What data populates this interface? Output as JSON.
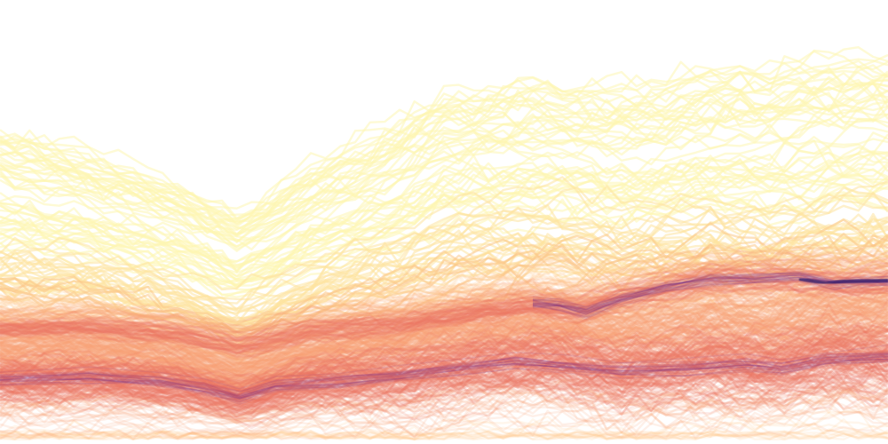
{
  "chart_data": {
    "type": "line",
    "render_style": "density",
    "colormap": [
      "#fdf6b3",
      "#fde3a0",
      "#fcc98a",
      "#f9a377",
      "#ef7565",
      "#d94f64",
      "#a8367a",
      "#6a2b8a",
      "#2b1a6b"
    ],
    "background": "#ffffff",
    "grid": false,
    "axes_visible": false,
    "legend": "none",
    "x_range": [
      0,
      100
    ],
    "y_range": [
      0,
      100
    ],
    "series_count_estimate": 600,
    "bands": [
      {
        "name": "main",
        "center": [
          [
            0,
            14
          ],
          [
            10,
            14.5
          ],
          [
            20,
            13
          ],
          [
            27,
            10
          ],
          [
            35,
            13.5
          ],
          [
            45,
            15
          ],
          [
            55,
            18
          ],
          [
            62,
            18.5
          ],
          [
            70,
            16
          ],
          [
            80,
            18
          ],
          [
            87,
            17
          ],
          [
            93,
            19
          ],
          [
            100,
            19
          ]
        ],
        "spread": [
          [
            0,
            22
          ],
          [
            27,
            16
          ],
          [
            50,
            24
          ],
          [
            100,
            26
          ]
        ]
      },
      {
        "name": "upper",
        "center": [
          [
            60,
            31
          ],
          [
            65,
            30
          ],
          [
            70,
            33
          ],
          [
            80,
            37
          ],
          [
            88,
            37.5
          ],
          [
            95,
            36
          ],
          [
            100,
            36.5
          ]
        ],
        "spread": [
          [
            60,
            9
          ],
          [
            80,
            11
          ],
          [
            100,
            12
          ]
        ]
      }
    ],
    "upper_envelope": [
      [
        0,
        95
      ],
      [
        3,
        88
      ],
      [
        6,
        85
      ],
      [
        10,
        92
      ],
      [
        12,
        99
      ],
      [
        16,
        97
      ],
      [
        19,
        93
      ],
      [
        21,
        90
      ],
      [
        24,
        72
      ],
      [
        27,
        62
      ],
      [
        30,
        72
      ],
      [
        32,
        88
      ],
      [
        35,
        82
      ],
      [
        38,
        74
      ],
      [
        42,
        92
      ],
      [
        45,
        86
      ],
      [
        48,
        92
      ],
      [
        52,
        88
      ],
      [
        56,
        97
      ],
      [
        60,
        84
      ],
      [
        64,
        80
      ],
      [
        67,
        86
      ],
      [
        69,
        95
      ],
      [
        72,
        93
      ],
      [
        75,
        99
      ],
      [
        79,
        92
      ],
      [
        82,
        99
      ],
      [
        85,
        88
      ],
      [
        88,
        99
      ],
      [
        92,
        96
      ],
      [
        96,
        99
      ],
      [
        100,
        97
      ]
    ],
    "dense_ridges": [
      {
        "points": [
          [
            0,
            14.5
          ],
          [
            10,
            15
          ],
          [
            18,
            14
          ],
          [
            23,
            12.5
          ],
          [
            27,
            10.5
          ],
          [
            31,
            13
          ],
          [
            38,
            14
          ],
          [
            45,
            15.5
          ],
          [
            52,
            17
          ],
          [
            58,
            18.5
          ],
          [
            64,
            17.5
          ],
          [
            70,
            16.5
          ],
          [
            77,
            17
          ],
          [
            84,
            18
          ],
          [
            88,
            17
          ],
          [
            93,
            19
          ],
          [
            100,
            19.5
          ]
        ],
        "intensity": 0.85
      },
      {
        "points": [
          [
            60,
            31.5
          ],
          [
            63,
            31
          ],
          [
            66,
            29.5
          ],
          [
            70,
            32.5
          ],
          [
            75,
            35
          ],
          [
            80,
            36.8
          ],
          [
            85,
            37
          ],
          [
            90,
            37.5
          ],
          [
            94,
            36
          ],
          [
            97,
            36.5
          ],
          [
            100,
            36.5
          ]
        ],
        "intensity": 1.0
      }
    ]
  }
}
